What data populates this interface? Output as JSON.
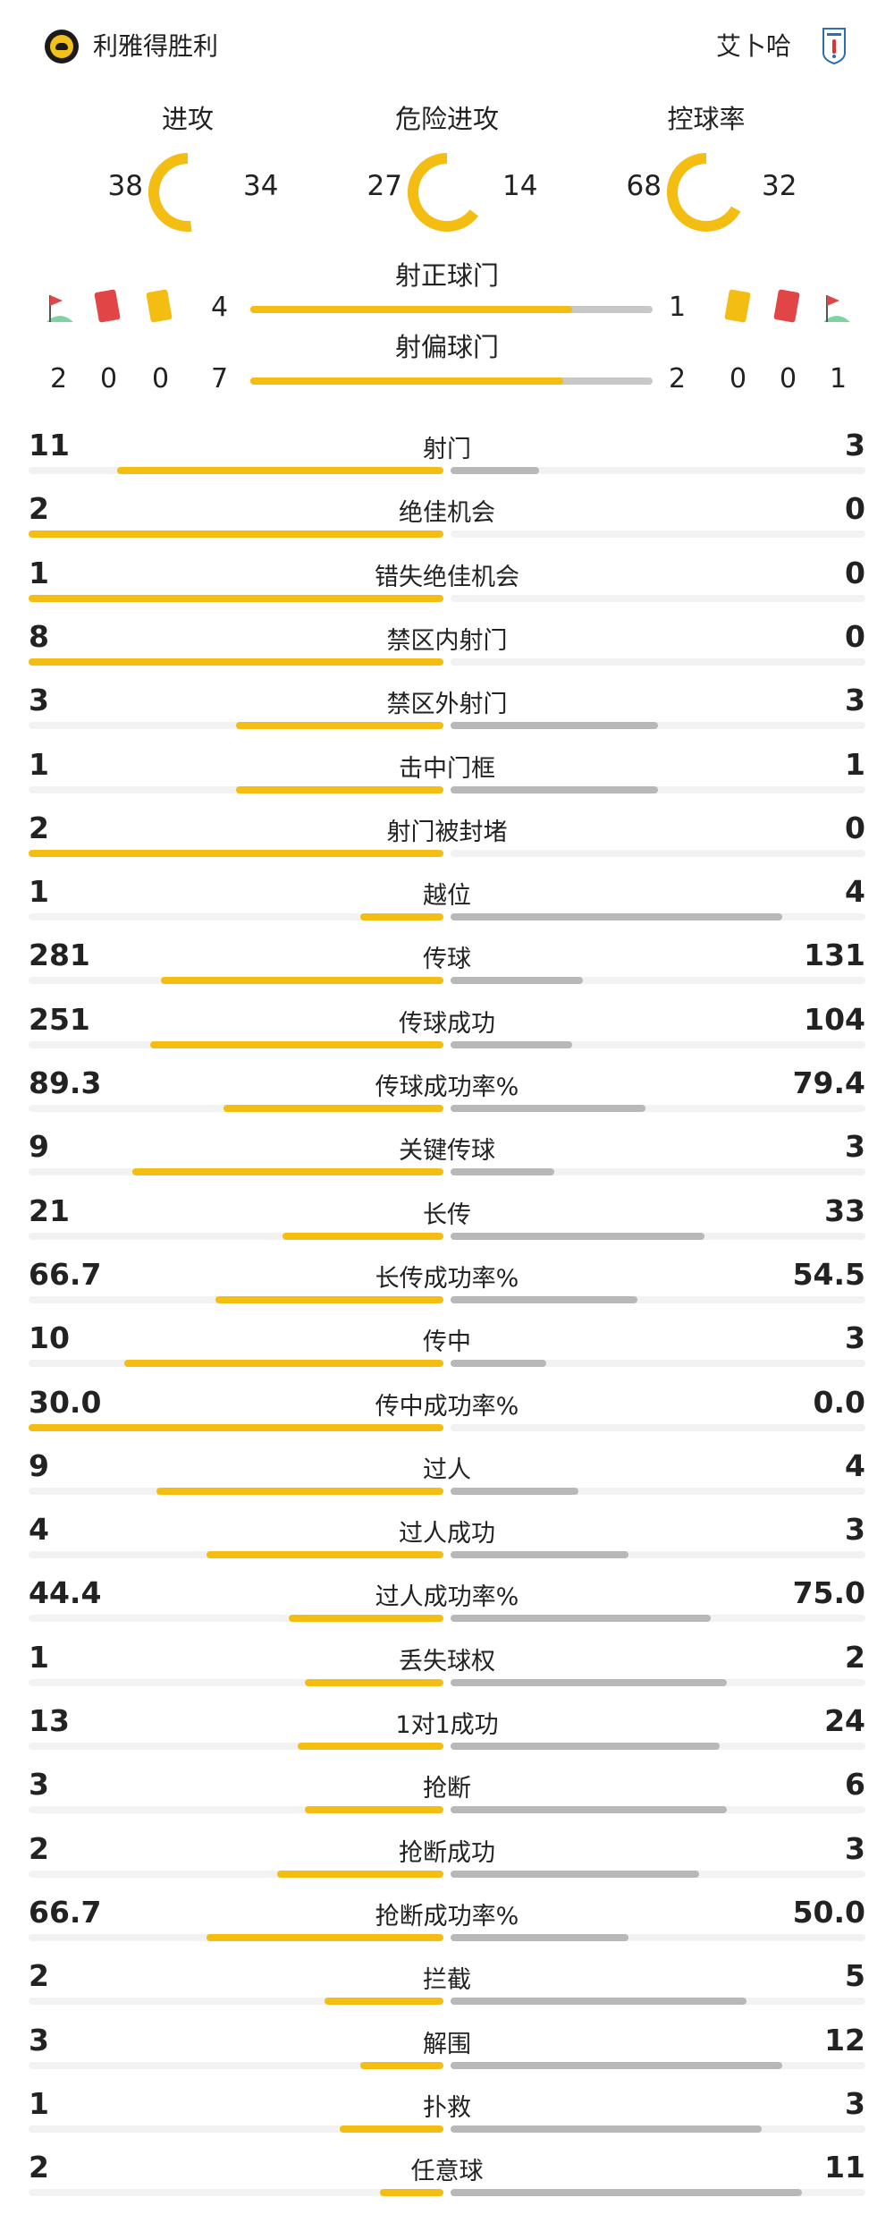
{
  "header": {
    "home_team": "利雅得胜利",
    "away_team": "艾卜哈"
  },
  "donuts": [
    {
      "title": "进攻",
      "home": "38",
      "away": "34",
      "home_val": 38,
      "away_val": 34
    },
    {
      "title": "危险进攻",
      "home": "27",
      "away": "14",
      "home_val": 27,
      "away_val": 14
    },
    {
      "title": "控球率",
      "home": "68",
      "away": "32",
      "home_val": 68,
      "away_val": 32
    }
  ],
  "shots_on_target": {
    "label": "射正球门",
    "home": "4",
    "away": "1",
    "home_val": 4,
    "away_val": 1
  },
  "shots_off_target": {
    "label": "射偏球门",
    "home": "7",
    "away": "2",
    "home_val": 7,
    "away_val": 2
  },
  "discipline": {
    "home_corners": "2",
    "home_red": "0",
    "home_yellow": "0",
    "away_yellow": "0",
    "away_red": "0",
    "away_corners": "1"
  },
  "colors": {
    "home": "#f4bd12",
    "away": "#b8b8b8",
    "track": "#f2f2f2"
  },
  "stats": [
    {
      "label": "射门",
      "home": "11",
      "away": "3",
      "home_val": 11,
      "away_val": 3
    },
    {
      "label": "绝佳机会",
      "home": "2",
      "away": "0",
      "home_val": 2,
      "away_val": 0
    },
    {
      "label": "错失绝佳机会",
      "home": "1",
      "away": "0",
      "home_val": 1,
      "away_val": 0
    },
    {
      "label": "禁区内射门",
      "home": "8",
      "away": "0",
      "home_val": 8,
      "away_val": 0
    },
    {
      "label": "禁区外射门",
      "home": "3",
      "away": "3",
      "home_val": 3,
      "away_val": 3
    },
    {
      "label": "击中门框",
      "home": "1",
      "away": "1",
      "home_val": 1,
      "away_val": 1
    },
    {
      "label": "射门被封堵",
      "home": "2",
      "away": "0",
      "home_val": 2,
      "away_val": 0
    },
    {
      "label": "越位",
      "home": "1",
      "away": "4",
      "home_val": 1,
      "away_val": 4
    },
    {
      "label": "传球",
      "home": "281",
      "away": "131",
      "home_val": 281,
      "away_val": 131
    },
    {
      "label": "传球成功",
      "home": "251",
      "away": "104",
      "home_val": 251,
      "away_val": 104
    },
    {
      "label": "传球成功率%",
      "home": "89.3",
      "away": "79.4",
      "home_val": 89.3,
      "away_val": 79.4
    },
    {
      "label": "关键传球",
      "home": "9",
      "away": "3",
      "home_val": 9,
      "away_val": 3
    },
    {
      "label": "长传",
      "home": "21",
      "away": "33",
      "home_val": 21,
      "away_val": 33
    },
    {
      "label": "长传成功率%",
      "home": "66.7",
      "away": "54.5",
      "home_val": 66.7,
      "away_val": 54.5
    },
    {
      "label": "传中",
      "home": "10",
      "away": "3",
      "home_val": 10,
      "away_val": 3
    },
    {
      "label": "传中成功率%",
      "home": "30.0",
      "away": "0.0",
      "home_val": 30.0,
      "away_val": 0.0
    },
    {
      "label": "过人",
      "home": "9",
      "away": "4",
      "home_val": 9,
      "away_val": 4
    },
    {
      "label": "过人成功",
      "home": "4",
      "away": "3",
      "home_val": 4,
      "away_val": 3
    },
    {
      "label": "过人成功率%",
      "home": "44.4",
      "away": "75.0",
      "home_val": 44.4,
      "away_val": 75.0
    },
    {
      "label": "丢失球权",
      "home": "1",
      "away": "2",
      "home_val": 1,
      "away_val": 2
    },
    {
      "label": "1对1成功",
      "home": "13",
      "away": "24",
      "home_val": 13,
      "away_val": 24
    },
    {
      "label": "抢断",
      "home": "3",
      "away": "6",
      "home_val": 3,
      "away_val": 6
    },
    {
      "label": "抢断成功",
      "home": "2",
      "away": "3",
      "home_val": 2,
      "away_val": 3
    },
    {
      "label": "抢断成功率%",
      "home": "66.7",
      "away": "50.0",
      "home_val": 66.7,
      "away_val": 50.0
    },
    {
      "label": "拦截",
      "home": "2",
      "away": "5",
      "home_val": 2,
      "away_val": 5
    },
    {
      "label": "解围",
      "home": "3",
      "away": "12",
      "home_val": 3,
      "away_val": 12
    },
    {
      "label": "扑救",
      "home": "1",
      "away": "3",
      "home_val": 1,
      "away_val": 3
    },
    {
      "label": "任意球",
      "home": "2",
      "away": "11",
      "home_val": 2,
      "away_val": 11
    }
  ]
}
